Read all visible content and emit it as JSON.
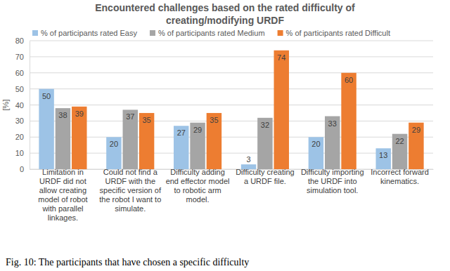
{
  "chart_data": {
    "type": "bar",
    "title": "Encountered challenges based on the rated difficulty of creating/modifying URDF",
    "y_label": "[%]",
    "caption": "Fig. 10: The participants that have chosen a specific difficulty",
    "categories": [
      "Limitation in URDF did not allow creating model of robot with parallel linkages.",
      "Could not find a URDF with the specific version of the robot I want to simulate.",
      "Difficulty adding end effector model to robotic arm model.",
      "Difficulty creating a URDF file.",
      "Difficulty importing the URDF into simulation tool.",
      "Incorrect forward kinematics."
    ],
    "series": [
      {
        "name": "% of participants rated Easy",
        "color": "#9dc3e6",
        "values": [
          50,
          20,
          27,
          3,
          20,
          13
        ]
      },
      {
        "name": "% of participants rated Medium",
        "color": "#a5a5a5",
        "values": [
          38,
          37,
          29,
          32,
          33,
          22
        ]
      },
      {
        "name": "% of participants rated Difficult",
        "color": "#ed7d31",
        "values": [
          39,
          35,
          35,
          74,
          60,
          29
        ]
      }
    ],
    "ylim": [
      0,
      80
    ],
    "yticks": [
      0,
      10,
      20,
      30,
      40,
      50,
      60,
      70,
      80
    ],
    "grid": true,
    "legend": "top",
    "data_labels": true
  }
}
